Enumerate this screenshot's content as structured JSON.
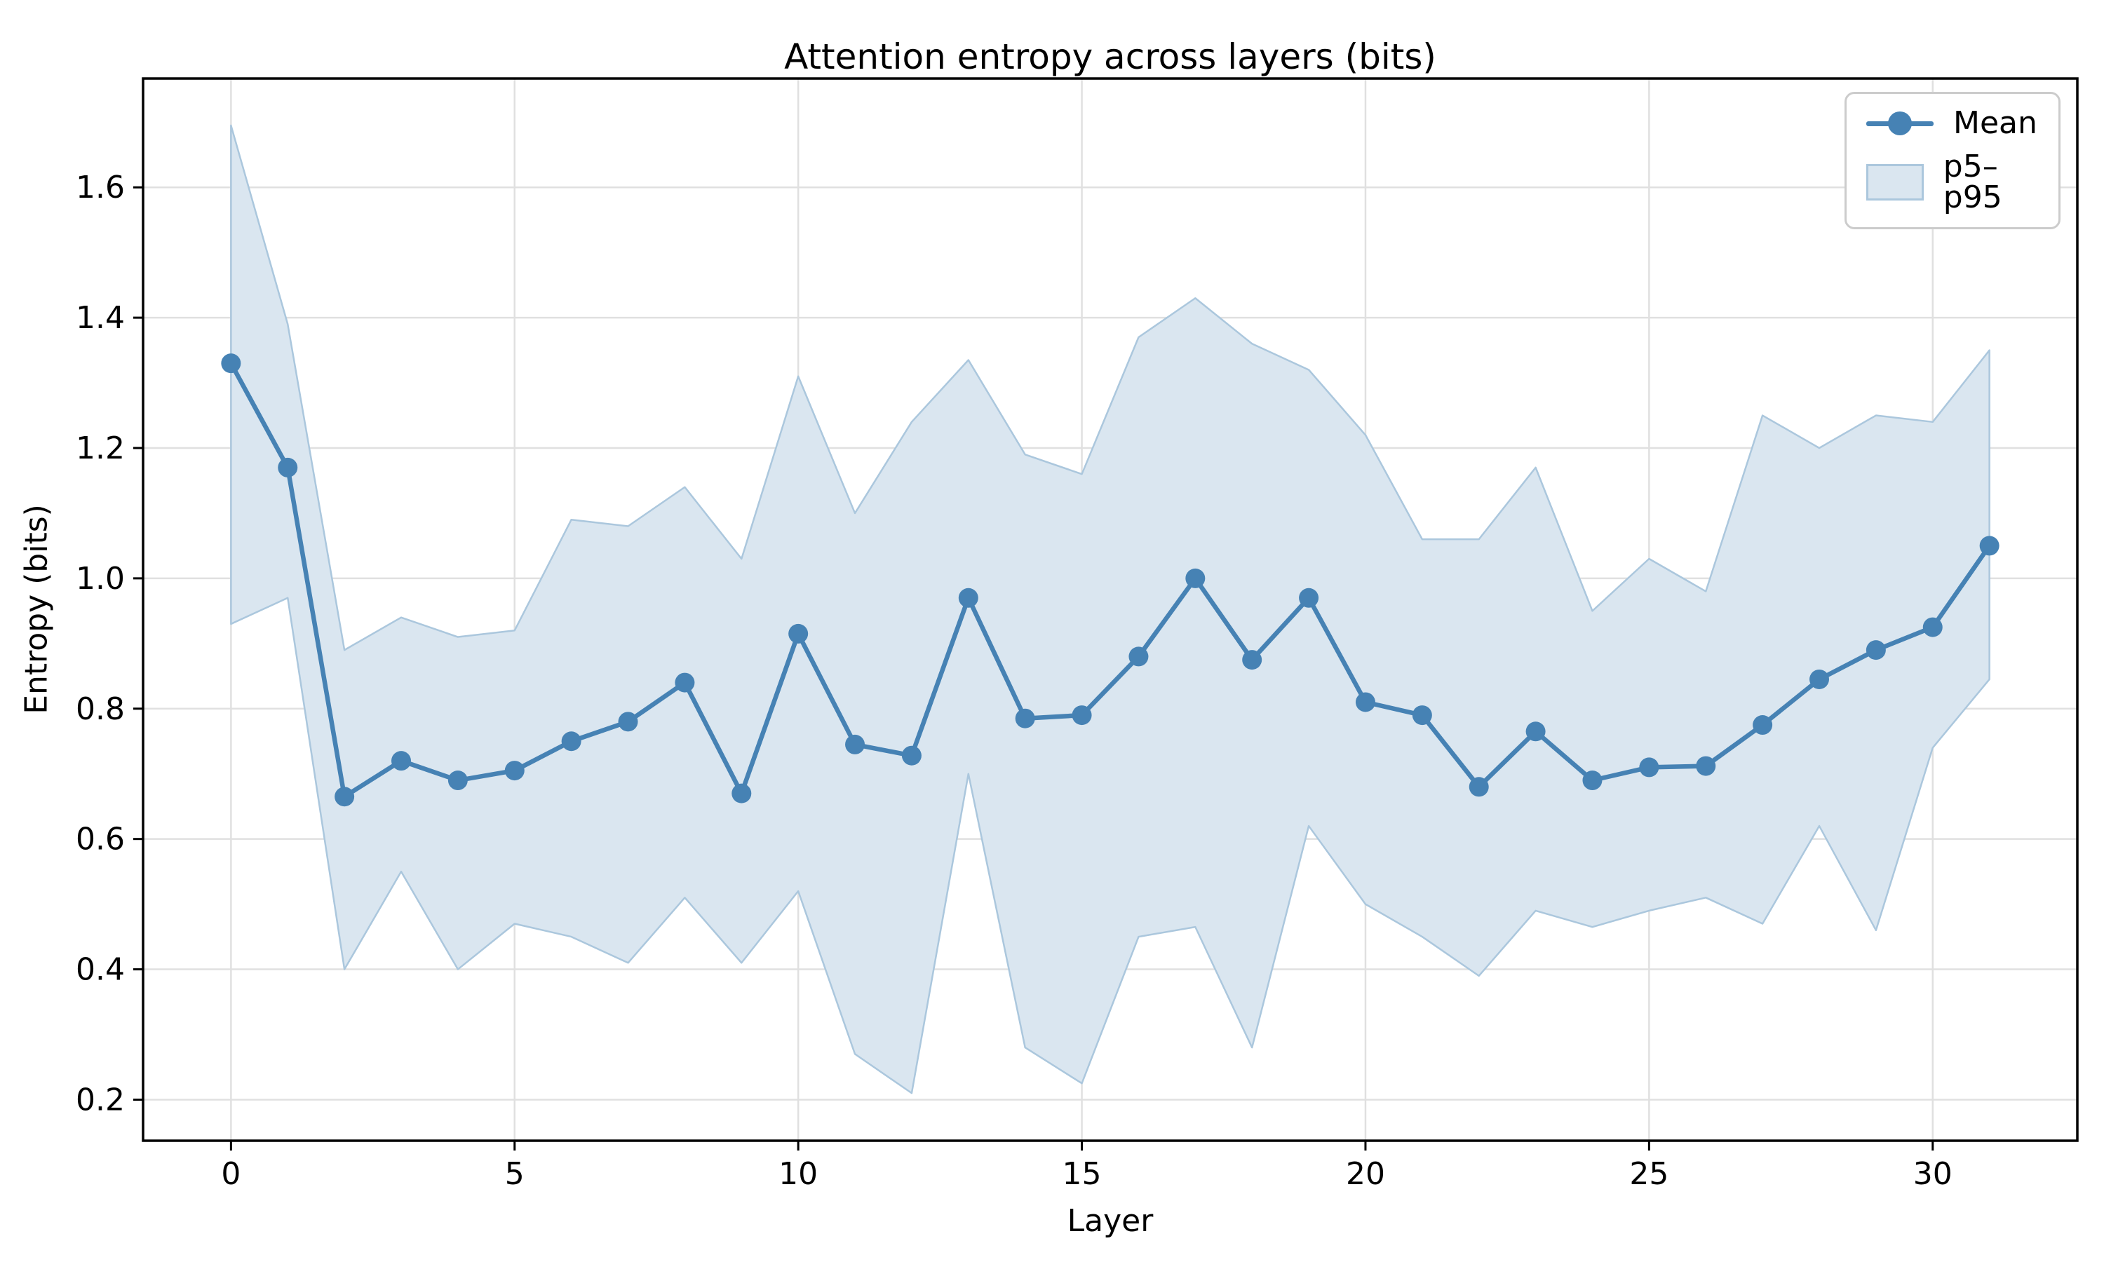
{
  "chart_data": {
    "type": "line",
    "title": "Attention entropy across layers (bits)",
    "xlabel": "Layer",
    "ylabel": "Entropy (bits)",
    "grid": true,
    "xlim": [
      -1.55,
      32.55
    ],
    "ylim": [
      0.137,
      1.767
    ],
    "xticks": [
      0,
      5,
      10,
      15,
      20,
      25,
      30
    ],
    "xtick_labels": [
      "0",
      "5",
      "10",
      "15",
      "20",
      "25",
      "30"
    ],
    "yticks": [
      0.2,
      0.4,
      0.6,
      0.8,
      1.0,
      1.2,
      1.4,
      1.6
    ],
    "ytick_labels": [
      "0.2",
      "0.4",
      "0.6",
      "0.8",
      "1.0",
      "1.2",
      "1.4",
      "1.6"
    ],
    "x": [
      0,
      1,
      2,
      3,
      4,
      5,
      6,
      7,
      8,
      9,
      10,
      11,
      12,
      13,
      14,
      15,
      16,
      17,
      18,
      19,
      20,
      21,
      22,
      23,
      24,
      25,
      26,
      27,
      28,
      29,
      30,
      31
    ],
    "series": [
      {
        "name": "Mean",
        "role": "mean",
        "values": [
          1.33,
          1.17,
          0.665,
          0.72,
          0.69,
          0.705,
          0.75,
          0.78,
          0.84,
          0.67,
          0.915,
          0.745,
          0.728,
          0.97,
          0.785,
          0.79,
          0.88,
          1.0,
          0.875,
          0.97,
          0.81,
          0.79,
          0.68,
          0.765,
          0.69,
          0.71,
          0.712,
          0.775,
          0.845,
          0.89,
          0.925,
          1.05
        ]
      },
      {
        "name": "p5",
        "role": "band-lower",
        "values": [
          0.93,
          0.97,
          0.4,
          0.55,
          0.4,
          0.47,
          0.45,
          0.41,
          0.51,
          0.41,
          0.52,
          0.27,
          0.21,
          0.7,
          0.28,
          0.225,
          0.45,
          0.465,
          0.28,
          0.62,
          0.5,
          0.45,
          0.39,
          0.49,
          0.465,
          0.49,
          0.51,
          0.47,
          0.62,
          0.46,
          0.74,
          0.845
        ]
      },
      {
        "name": "p95",
        "role": "band-upper",
        "values": [
          1.695,
          1.39,
          0.89,
          0.94,
          0.91,
          0.92,
          1.09,
          1.08,
          1.14,
          1.03,
          1.31,
          1.1,
          1.24,
          1.335,
          1.19,
          1.16,
          1.37,
          1.43,
          1.36,
          1.32,
          1.22,
          1.06,
          1.06,
          1.17,
          0.95,
          1.03,
          0.98,
          1.25,
          1.2,
          1.25,
          1.24,
          1.35
        ]
      }
    ],
    "legend": {
      "position": "upper right",
      "items": [
        {
          "label": "Mean",
          "glyph": "line-with-marker"
        },
        {
          "label": "p5–p95",
          "glyph": "filled-patch"
        }
      ]
    },
    "colors": {
      "line": "#4682b4",
      "marker": "#4682b4",
      "band_fill": "#dae6f0",
      "band_edge": "#abc7dd",
      "grid": "#e0e0e0",
      "spine": "#000000",
      "text": "#000000",
      "legend_border": "#cccccc"
    }
  }
}
